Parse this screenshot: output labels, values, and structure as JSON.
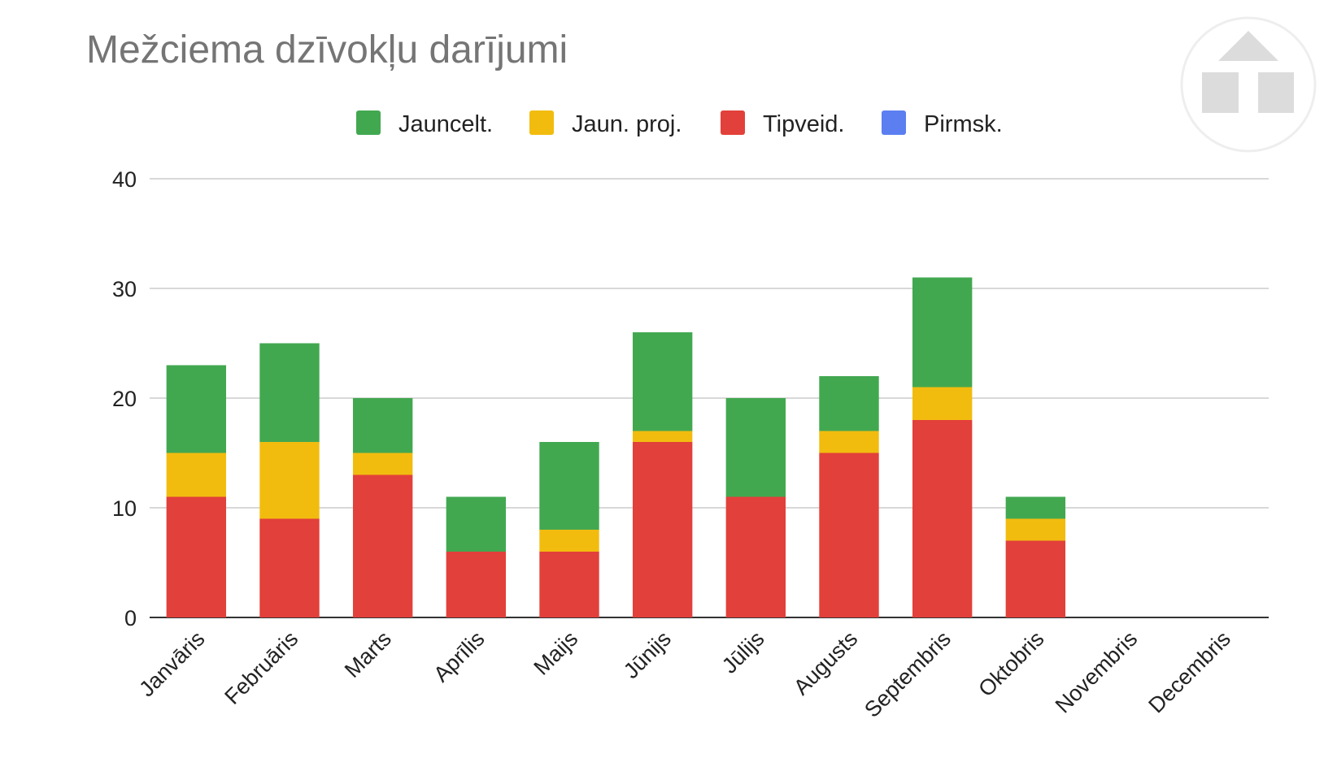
{
  "chart_data": {
    "type": "bar",
    "stacked": true,
    "title": "Mežciema dzīvokļu darījumi",
    "xlabel": "",
    "ylabel": "",
    "ylim": [
      0,
      40
    ],
    "yticks": [
      0,
      10,
      20,
      30,
      40
    ],
    "grid": true,
    "legend": "top",
    "categories": [
      "Janvāris",
      "Februāris",
      "Marts",
      "Aprīlis",
      "Maijs",
      "Jūnijs",
      "Jūlijs",
      "Augusts",
      "Septembris",
      "Oktobris",
      "Novembris",
      "Decembris"
    ],
    "series": [
      {
        "name": "Pirmsk.",
        "color": "#5b7ff0",
        "values": [
          0,
          0,
          0,
          0,
          0,
          0,
          0,
          0,
          0,
          0,
          0,
          0
        ]
      },
      {
        "name": "Tipveid.",
        "color": "#e2403a",
        "values": [
          11,
          9,
          13,
          6,
          6,
          16,
          11,
          15,
          18,
          7,
          0,
          0
        ]
      },
      {
        "name": "Jaun. proj.",
        "color": "#f2bc0f",
        "values": [
          4,
          7,
          2,
          0,
          2,
          1,
          0,
          2,
          3,
          2,
          0,
          0
        ]
      },
      {
        "name": "Jauncelt.",
        "color": "#42a850",
        "values": [
          8,
          9,
          5,
          5,
          8,
          9,
          9,
          5,
          10,
          2,
          0,
          0
        ]
      }
    ],
    "legend_order": [
      "Jauncelt.",
      "Jaun. proj.",
      "Tipveid.",
      "Pirmsk."
    ]
  },
  "logo": {
    "name": "triangle-logo-icon",
    "color": "#dcdcdc"
  }
}
